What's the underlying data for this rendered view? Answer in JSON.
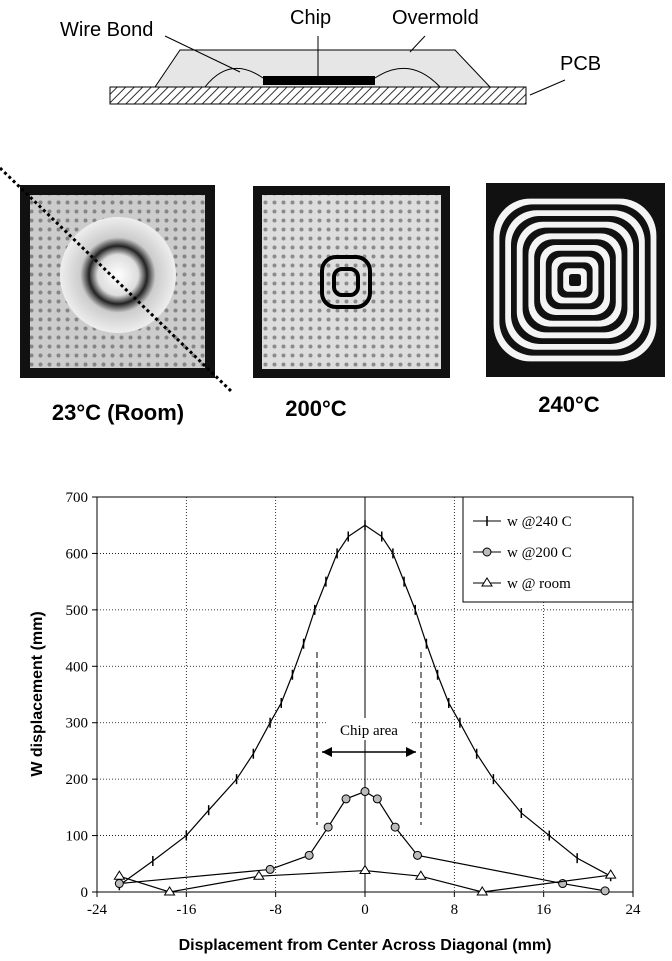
{
  "diagram": {
    "labels": [
      "Wire Bond",
      "Chip",
      "Overmold",
      "PCB"
    ]
  },
  "images": {
    "captions": [
      "23°C (Room)",
      "200°C",
      "240°C"
    ]
  },
  "chart_data": {
    "type": "line",
    "y_label": "W displacement (mm)",
    "x_label": "Displacement from Center Across Diagonal (mm)",
    "annotation": "Chip area",
    "xlim": [
      -24,
      24
    ],
    "xticks": [
      -24,
      -16,
      -8,
      0,
      8,
      16,
      24
    ],
    "ylim": [
      0,
      700
    ],
    "yticks": [
      0,
      100,
      200,
      300,
      400,
      500,
      600,
      700
    ],
    "grid": true,
    "legend": "top-right",
    "series": [
      {
        "name": "w @240 C",
        "color": "#000000",
        "marker": "plus",
        "x": [
          -22,
          -19,
          -16,
          -14,
          -11.5,
          -10,
          -8.5,
          -7.5,
          -6.5,
          -5.5,
          -4.5,
          -3.5,
          -2.5,
          -1.5,
          0,
          1.5,
          2.5,
          3.5,
          4.5,
          5.5,
          6.5,
          7.5,
          8.5,
          10,
          11.5,
          14,
          16.5,
          19,
          22
        ],
        "values": [
          12,
          55,
          100,
          145,
          200,
          245,
          300,
          335,
          385,
          440,
          500,
          550,
          600,
          630,
          650,
          630,
          600,
          550,
          500,
          440,
          385,
          335,
          300,
          245,
          200,
          140,
          100,
          60,
          28
        ]
      },
      {
        "name": "w @200 C",
        "color": "#000000",
        "marker": "circle",
        "x": [
          -22,
          -8.5,
          -5,
          -3.3,
          -1.7,
          0,
          1.1,
          2.7,
          4.7,
          17.7,
          21.5
        ],
        "values": [
          15,
          40,
          65,
          115,
          165,
          178,
          165,
          115,
          65,
          15,
          2
        ]
      },
      {
        "name": "w @ room",
        "color": "#000000",
        "marker": "triangle",
        "x": [
          -22,
          -17.5,
          -9.5,
          0,
          5,
          10.5,
          22
        ],
        "values": [
          28,
          0,
          28,
          38,
          28,
          0,
          30
        ]
      }
    ]
  }
}
